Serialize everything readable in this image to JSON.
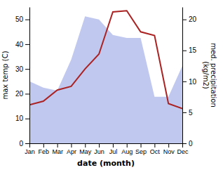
{
  "chart_data": {
    "type": "line",
    "categories": [
      "Jan",
      "Feb",
      "Mar",
      "Apr",
      "May",
      "Jun",
      "Jul",
      "Aug",
      "Sep",
      "Oct",
      "Nov",
      "Dec"
    ],
    "xlabel": "date (month)",
    "ylabel": "max temp (C)",
    "y2label": "med. precipitation\n(kg/m2)",
    "series": [
      {
        "type": "line",
        "color": "#aa2222",
        "values": [
          15.5,
          17.0,
          21.5,
          23.0,
          30.0,
          36.0,
          53.0,
          53.5,
          45.0,
          43.5,
          16.0,
          14.0
        ]
      },
      {
        "type": "area",
        "axis": "y2",
        "color": "#c0c8f0",
        "values": [
          10.0,
          9.0,
          8.5,
          13.5,
          20.5,
          20.0,
          17.5,
          17.0,
          17.0,
          7.5,
          7.5,
          12.5
        ]
      }
    ],
    "ylim": [
      0,
      55
    ],
    "yticks": [
      0,
      10,
      20,
      30,
      40,
      50
    ],
    "y2lim": [
      0,
      22
    ],
    "y2ticks": [
      0,
      5,
      10,
      15,
      20
    ],
    "grid": false
  }
}
